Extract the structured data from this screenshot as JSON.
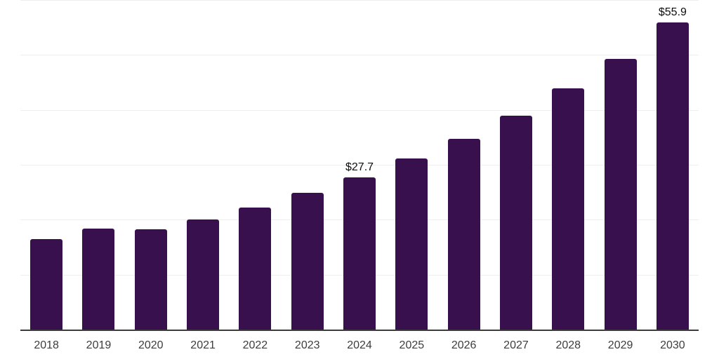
{
  "chart_data": {
    "type": "bar",
    "title": "",
    "categories": [
      "2018",
      "2019",
      "2020",
      "2021",
      "2022",
      "2023",
      "2024",
      "2025",
      "2026",
      "2027",
      "2028",
      "2029",
      "2030"
    ],
    "values": [
      16.5,
      18.4,
      18.2,
      20.0,
      22.2,
      24.9,
      27.7,
      31.1,
      34.7,
      38.9,
      43.9,
      49.3,
      55.9
    ],
    "data_labels": {
      "2024": "$27.7",
      "2030": "$55.9"
    },
    "xlabel": "",
    "ylabel": "",
    "ylim": [
      0,
      60
    ],
    "grid_step": 10,
    "grid": true,
    "legend_position": "none",
    "colors": {
      "bar": "#38104e",
      "gridline": "#eeeeee",
      "axis_line": "#3c3c3c",
      "tick_label": "#3d3d3d",
      "data_label": "#0d0d0d",
      "background": "#ffffff"
    }
  }
}
